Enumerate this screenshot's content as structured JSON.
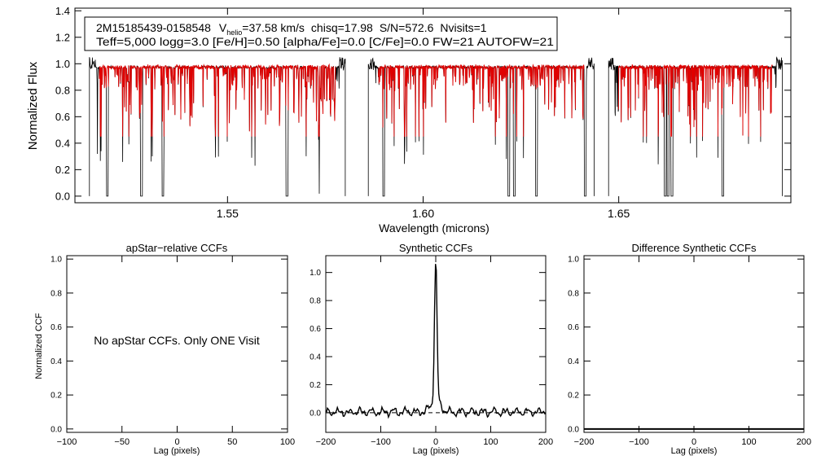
{
  "colors": {
    "observed": "#000000",
    "model": "#e00000",
    "axis": "#000000"
  },
  "header": {
    "star_id": "2M15185439-0158548",
    "v_label": "V",
    "v_subscript": "helio",
    "v_value": "=37.58 km/s",
    "chisq": "chisq=17.98",
    "snr": "S/N=572.6",
    "nvisits": "Nvisits=1",
    "params_line": "Teff=5,000 logg=3.0 [Fe/H]=0.50 [alpha/Fe]=0.0 [C/Fe]=0.0 FW=21 AUTOFW=21"
  },
  "chart_data": [
    {
      "id": "spectrum",
      "type": "line",
      "title": "",
      "xlabel": "Wavelength (microns)",
      "ylabel": "Normalized Flux",
      "xlim": [
        1.511,
        1.694
      ],
      "ylim": [
        -0.05,
        1.42
      ],
      "xticks": [
        1.55,
        1.6,
        1.65
      ],
      "xtick_labels": [
        "1.55",
        "1.60",
        "1.65"
      ],
      "yticks": [
        0.0,
        0.2,
        0.4,
        0.6,
        0.8,
        1.0,
        1.2,
        1.4
      ],
      "ytick_labels": [
        "0.0",
        "0.2",
        "0.4",
        "0.6",
        "0.8",
        "1.0",
        "1.2",
        "1.4"
      ],
      "chips": [
        [
          1.5147,
          1.5801
        ],
        [
          1.586,
          1.6437
        ],
        [
          1.6474,
          1.6918
        ]
      ],
      "deep_lines": [
        1.5193,
        1.528,
        1.5335,
        1.5652,
        1.5899,
        1.6219,
        1.6233,
        1.629,
        1.6414,
        1.6619,
        1.6626,
        1.6636,
        1.6766
      ],
      "series": [
        {
          "name": "observed",
          "color": "#000000"
        },
        {
          "name": "synthetic",
          "color": "#e00000"
        }
      ]
    },
    {
      "id": "apstar-ccf",
      "type": "line",
      "title": "apStar−relative CCFs",
      "xlabel": "Lag (pixels)",
      "ylabel": "Normalized CCF",
      "xlim": [
        -100,
        100
      ],
      "ylim": [
        -0.02,
        1.02
      ],
      "xticks": [
        -100,
        -50,
        0,
        50,
        100
      ],
      "xtick_labels": [
        "−100",
        "−50",
        "0",
        "50",
        "100"
      ],
      "yticks": [
        0.0,
        0.2,
        0.4,
        0.6,
        0.8,
        1.0
      ],
      "ytick_labels": [
        "0.0",
        "0.2",
        "0.4",
        "0.6",
        "0.8",
        "1.0"
      ],
      "annotation": "No apStar CCFs.  Only ONE Visit",
      "series": []
    },
    {
      "id": "synthetic-ccf",
      "type": "line",
      "title": "Synthetic CCFs",
      "xlabel": "Lag (pixels)",
      "ylabel": "",
      "xlim": [
        -200,
        200
      ],
      "ylim": [
        -0.14,
        1.12
      ],
      "xticks": [
        -200,
        -100,
        0,
        100,
        200
      ],
      "xtick_labels": [
        "−200",
        "−100",
        "0",
        "100",
        "200"
      ],
      "yticks": [
        0.0,
        0.2,
        0.4,
        0.6,
        0.8,
        1.0
      ],
      "ytick_labels": [
        "0.0",
        "0.2",
        "0.4",
        "0.6",
        "0.8",
        "1.0"
      ],
      "peak": {
        "x": 0,
        "y": 1.0
      },
      "zero_line": "dashed",
      "series": [
        {
          "name": "synthetic-ccf",
          "color": "#000000"
        }
      ]
    },
    {
      "id": "difference-ccf",
      "type": "line",
      "title": "Difference Synthetic CCFs",
      "xlabel": "Lag (pixels)",
      "ylabel": "",
      "xlim": [
        -200,
        200
      ],
      "ylim": [
        -0.02,
        1.02
      ],
      "xticks": [
        -200,
        -100,
        0,
        100,
        200
      ],
      "xtick_labels": [
        "−200",
        "−100",
        "0",
        "100",
        "200"
      ],
      "yticks": [
        0.0,
        0.2,
        0.4,
        0.6,
        0.8,
        1.0
      ],
      "ytick_labels": [
        "0.0",
        "0.2",
        "0.4",
        "0.6",
        "0.8",
        "1.0"
      ],
      "series": [
        {
          "name": "difference-ccf",
          "color": "#000000",
          "values": "flat at 0"
        }
      ]
    }
  ]
}
